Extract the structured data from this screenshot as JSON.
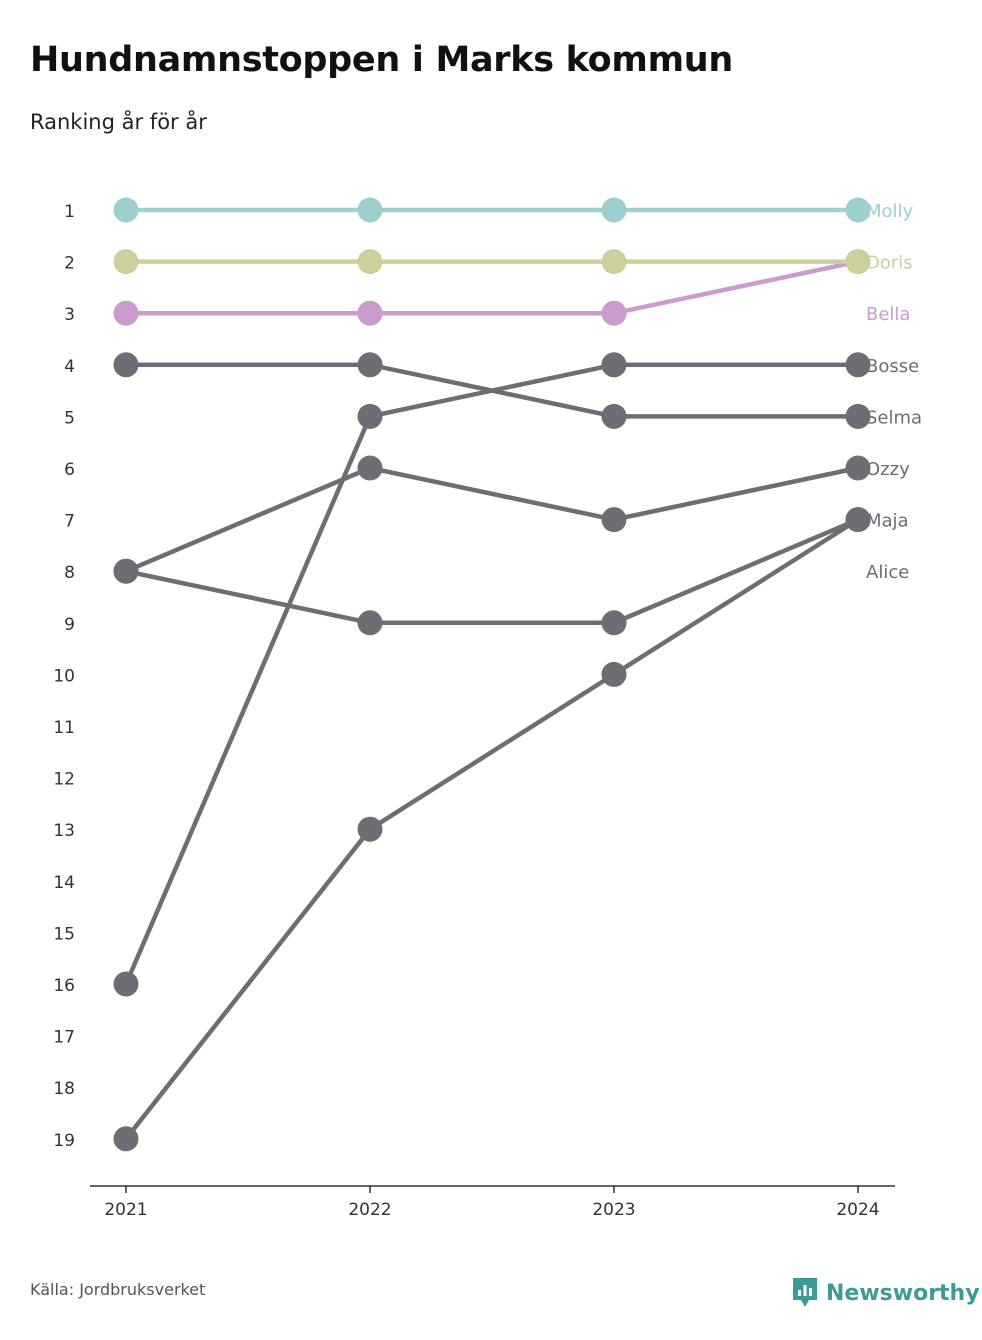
{
  "title": "Hundnamnstoppen i Marks kommun",
  "subtitle": "Ranking år för år",
  "source": "Källa: Jordbruksverket",
  "brand": {
    "name": "Newsworthy",
    "icon": "newsworthy-logo-icon"
  },
  "colors": {
    "molly": "#9ccfcd",
    "doris": "#cdcf9c",
    "bella": "#cc9bcd",
    "gray": "#6e6d73",
    "axis": "#333333",
    "tick_text": "#333333",
    "brand": "#3d9b97"
  },
  "chart_data": {
    "type": "line",
    "x": [
      "2021",
      "2022",
      "2023",
      "2024"
    ],
    "ylim": [
      1,
      19
    ],
    "y_reversed": true,
    "y_ticks": [
      1,
      2,
      3,
      4,
      5,
      6,
      7,
      8,
      9,
      10,
      11,
      12,
      13,
      14,
      15,
      16,
      17,
      18,
      19
    ],
    "grid": false,
    "legend": "end-labels",
    "series": [
      {
        "name": "Molly",
        "values": [
          1,
          1,
          1,
          1
        ],
        "color": "#9ccfcd"
      },
      {
        "name": "Doris",
        "values": [
          2,
          2,
          2,
          2
        ],
        "color": "#cdcf9c"
      },
      {
        "name": "Bella",
        "values": [
          3,
          3,
          3,
          2
        ],
        "color": "#cc9bcd"
      },
      {
        "name": "Bosse",
        "values": [
          16,
          5,
          4,
          4
        ],
        "color": "#6e6d73"
      },
      {
        "name": "Selma",
        "values": [
          4,
          4,
          5,
          5
        ],
        "color": "#6e6d73"
      },
      {
        "name": "Ozzy",
        "values": [
          8,
          6,
          7,
          6
        ],
        "color": "#6e6d73"
      },
      {
        "name": "Maja",
        "values": [
          8,
          9,
          9,
          7
        ],
        "color": "#6e6d73"
      },
      {
        "name": "Alice",
        "values": [
          19,
          13,
          10,
          7
        ],
        "color": "#6e6d73"
      }
    ]
  }
}
